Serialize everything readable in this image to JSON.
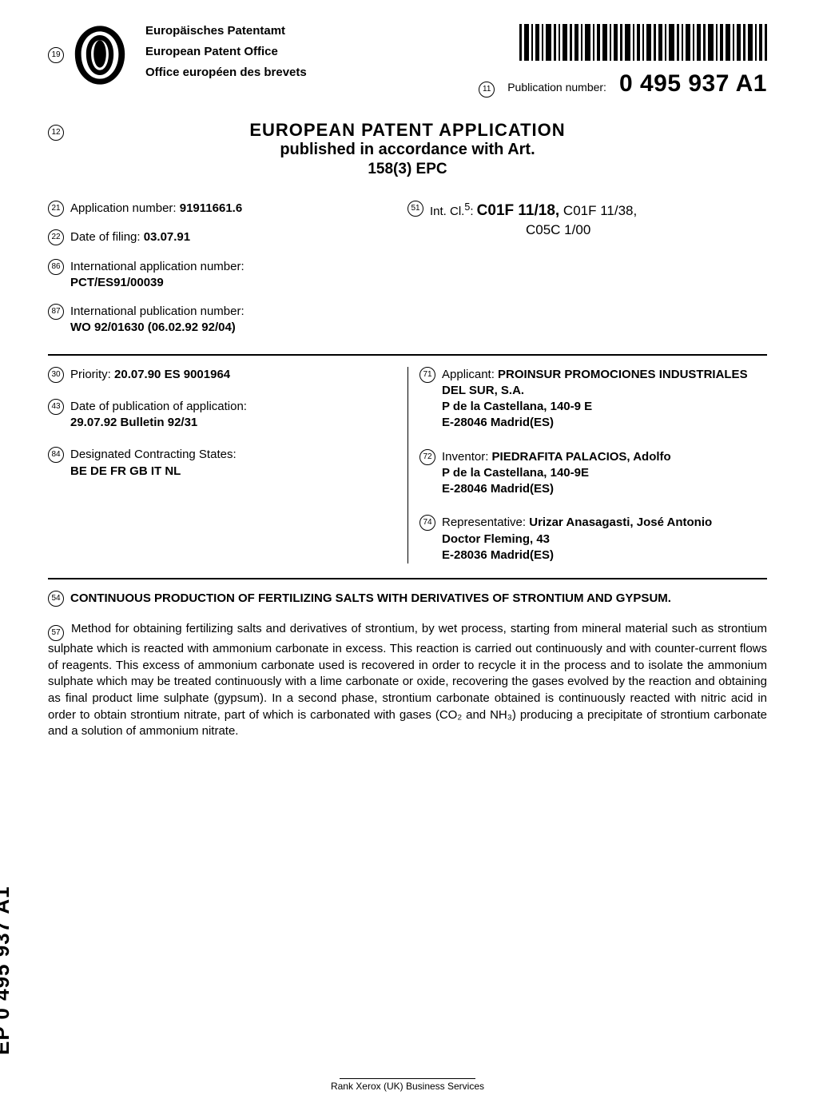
{
  "colors": {
    "text": "#000000",
    "bg": "#ffffff",
    "rule": "#000000"
  },
  "typography": {
    "body_fontsize": 15,
    "title_fontsize": 22,
    "pubnum_fontsize": 30,
    "spine_fontsize": 26,
    "font_family": "Arial"
  },
  "header": {
    "circled": "19",
    "office_de": "Europäisches Patentamt",
    "office_en": "European Patent Office",
    "office_fr": "Office européen des brevets",
    "pub_circled": "11",
    "pub_label": "Publication number:",
    "pub_number": "0 495 937 A1"
  },
  "title": {
    "circled": "12",
    "line1": "EUROPEAN  PATENT  APPLICATION",
    "line2": "published  in  accordance  with  Art.",
    "line3": "158(3)  EPC"
  },
  "meta_top_left": [
    {
      "c": "21",
      "text_plain": "Application number: ",
      "text_bold": "91911661.6"
    },
    {
      "c": "22",
      "text_plain": "Date of filing: ",
      "text_bold": "03.07.91"
    },
    {
      "c": "86",
      "text_plain": "International application number:",
      "text_bold": "PCT/ES91/00039",
      "wrap": true
    },
    {
      "c": "87",
      "text_plain": "International publication number:",
      "text_bold": "WO 92/01630 (06.02.92 92/04)",
      "wrap": true
    }
  ],
  "meta_top_right": {
    "c": "51",
    "prefix": "Int. Cl.",
    "sup": "5",
    "main": "C01F  11/18,",
    "sub": " C01F 11/38,",
    "sub2": "C05C 1/00"
  },
  "grid_left": [
    {
      "c": "30",
      "label": "Priority: ",
      "bold": "20.07.90 ES 9001964"
    },
    {
      "c": "43",
      "label": "Date of publication of application:",
      "bold": "29.07.92 Bulletin  92/31",
      "wrap": true
    },
    {
      "c": "84",
      "label": "Designated Contracting States:",
      "bold": "BE DE FR GB IT NL",
      "wrap": true
    }
  ],
  "grid_right": [
    {
      "c": "71",
      "label": "Applicant: ",
      "bold": "PROINSUR PROMOCIONES INDUSTRIALES DEL SUR, S.A.",
      "lines": [
        "P de la Castellana, 140-9 E",
        "E-28046 Madrid(ES)"
      ]
    },
    {
      "c": "72",
      "label": "Inventor: ",
      "bold": "PIEDRAFITA PALACIOS, Adolfo",
      "lines": [
        "P de la Castellana, 140-9E",
        "E-28046 Madrid(ES)"
      ]
    },
    {
      "c": "74",
      "label": "Representative: ",
      "bold": "Urizar Anasagasti, José Antonio",
      "lines": [
        "Doctor Fleming, 43",
        "E-28036 Madrid(ES)"
      ]
    }
  ],
  "abs_title": {
    "c": "54",
    "text": "CONTINUOUS PRODUCTION OF FERTILIZING SALTS WITH DERIVATIVES OF STRONTIUM AND GYPSUM."
  },
  "abstract": {
    "c": "57",
    "text": "Method for obtaining fertilizing salts and derivatives of strontium, by wet process, starting from mineral material such as strontium sulphate which is reacted with ammonium carbonate in excess. This reaction is carried out continuously and with counter-current flows of reagents. This excess of ammonium carbonate used is recovered in order to recycle it in the process and to isolate the ammonium sulphate which may be treated continuously with a lime carbonate or oxide, recovering the gases evolved by the reaction and obtaining as final product lime sulphate (gypsum). In a second phase, strontium carbonate obtained is continuously reacted with nitric acid in order to obtain strontium nitrate, part of which is carbonated with gases (CO₂ and NH₃) producing a precipitate of strontium carbonate and a solution of ammonium nitrate."
  },
  "spine": "EP  0  495  937  A1",
  "footer": "Rank Xerox (UK) Business Services"
}
